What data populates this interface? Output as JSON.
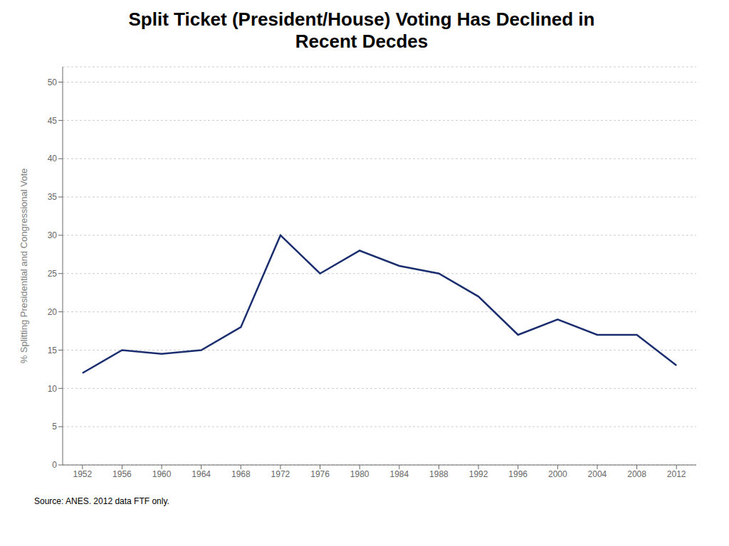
{
  "chart_data": {
    "type": "line",
    "title": "Split Ticket (President/House) Voting Has Declined in\nRecent Decdes",
    "ylabel": "% Splitting Presidential and Congressional Vote",
    "source": "Source: ANES. 2012 data FTF only.",
    "x": [
      1952,
      1956,
      1960,
      1964,
      1968,
      1972,
      1976,
      1980,
      1984,
      1988,
      1992,
      1996,
      2000,
      2004,
      2008,
      2012
    ],
    "values": [
      12,
      15,
      14.5,
      15,
      18,
      30,
      25,
      28,
      26,
      25,
      22,
      17,
      19,
      17,
      17,
      13
    ],
    "color": "#1a2d6e",
    "xlim": [
      1950,
      2014
    ],
    "xticks": [
      1952,
      1956,
      1960,
      1964,
      1968,
      1972,
      1976,
      1980,
      1984,
      1988,
      1992,
      1996,
      2000,
      2004,
      2008,
      2012
    ],
    "ylim": [
      0,
      52
    ],
    "yticks": [
      0,
      5,
      10,
      15,
      20,
      25,
      30,
      35,
      40,
      45,
      50
    ],
    "grid": true
  }
}
